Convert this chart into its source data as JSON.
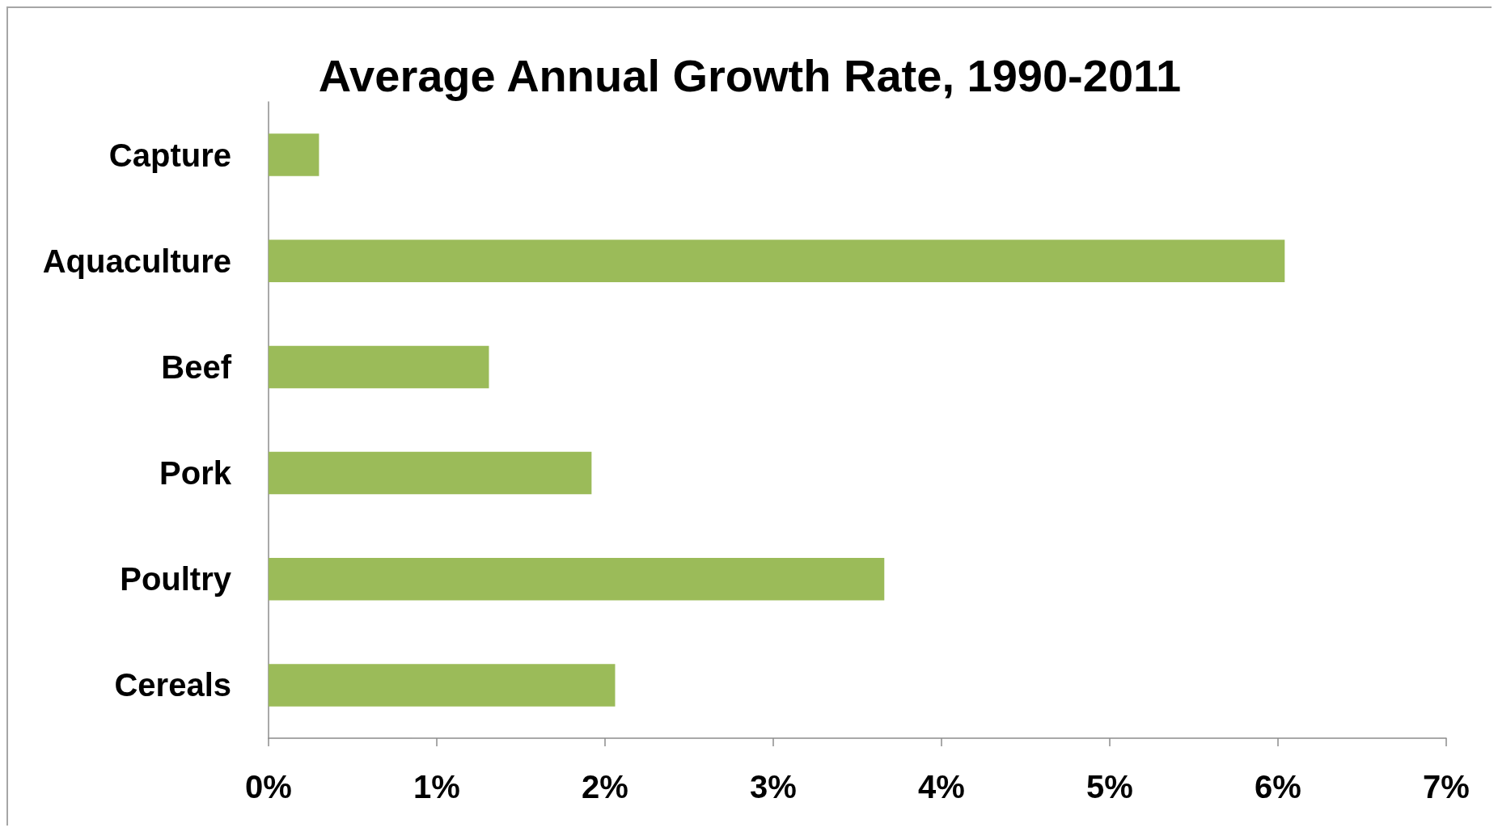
{
  "chart_data": {
    "type": "bar",
    "title": "Average Annual Growth Rate, 1990-2011",
    "orientation": "horizontal",
    "categories": [
      "Capture",
      "Aquaculture",
      "Beef",
      "Pork",
      "Poultry",
      "Cereals"
    ],
    "values": [
      0.3,
      6.04,
      1.31,
      1.92,
      3.66,
      2.06
    ],
    "color": "#9bbb59",
    "xlim": [
      0,
      7
    ],
    "xticks": [
      {
        "value": 0,
        "label": "0%"
      },
      {
        "value": 1,
        "label": "1%"
      },
      {
        "value": 2,
        "label": "2%"
      },
      {
        "value": 3,
        "label": "3%"
      },
      {
        "value": 4,
        "label": "4%"
      },
      {
        "value": 5,
        "label": "5%"
      },
      {
        "value": 6,
        "label": "6%"
      },
      {
        "value": 7,
        "label": "7%"
      }
    ],
    "grid": false
  }
}
